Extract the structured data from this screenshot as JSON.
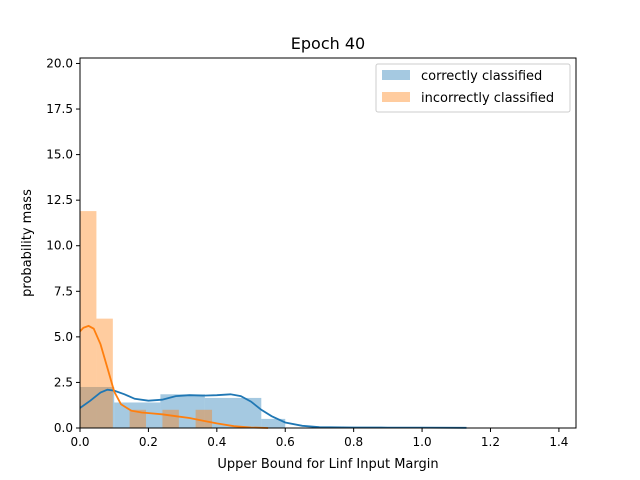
{
  "chart_data": {
    "type": "histogram",
    "title": "Epoch  40",
    "xlabel": "Upper Bound for Linf Input Margin",
    "ylabel": "probability mass",
    "xlim": [
      0.0,
      1.45
    ],
    "ylim": [
      0.0,
      20.3
    ],
    "x_ticks": [
      "0.0",
      "0.2",
      "0.4",
      "0.6",
      "0.8",
      "1.0",
      "1.2",
      "1.4"
    ],
    "y_ticks": [
      "0.0",
      "2.5",
      "5.0",
      "7.5",
      "10.0",
      "12.5",
      "15.0",
      "17.5",
      "20.0"
    ],
    "grid": false,
    "legend_position": "top-right",
    "series": [
      {
        "name": "correctly classified",
        "bar_color": "#1f77b4",
        "line_color": "#1f77b4",
        "bins": [
          {
            "x0": 0.0,
            "x1": 0.1,
            "height": 2.25
          },
          {
            "x0": 0.1,
            "x1": 0.235,
            "height": 1.4
          },
          {
            "x0": 0.235,
            "x1": 0.365,
            "height": 1.85
          },
          {
            "x0": 0.365,
            "x1": 0.53,
            "height": 1.65
          },
          {
            "x0": 0.53,
            "x1": 0.6,
            "height": 0.5
          }
        ],
        "kde": [
          [
            0.0,
            1.1
          ],
          [
            0.03,
            1.5
          ],
          [
            0.06,
            1.95
          ],
          [
            0.08,
            2.1
          ],
          [
            0.1,
            2.05
          ],
          [
            0.13,
            1.85
          ],
          [
            0.16,
            1.6
          ],
          [
            0.2,
            1.5
          ],
          [
            0.24,
            1.55
          ],
          [
            0.28,
            1.75
          ],
          [
            0.32,
            1.8
          ],
          [
            0.36,
            1.78
          ],
          [
            0.4,
            1.8
          ],
          [
            0.44,
            1.85
          ],
          [
            0.47,
            1.75
          ],
          [
            0.5,
            1.45
          ],
          [
            0.53,
            1.0
          ],
          [
            0.56,
            0.65
          ],
          [
            0.6,
            0.3
          ],
          [
            0.65,
            0.12
          ],
          [
            0.7,
            0.05
          ],
          [
            0.8,
            0.03
          ],
          [
            0.9,
            0.02
          ],
          [
            1.0,
            0.02
          ],
          [
            1.13,
            0.01
          ]
        ]
      },
      {
        "name": "incorrectly classified",
        "bar_color": "#ff7f0e",
        "line_color": "#ff7f0e",
        "bins": [
          {
            "x0": 0.0,
            "x1": 0.048,
            "height": 11.9
          },
          {
            "x0": 0.048,
            "x1": 0.096,
            "height": 6.0
          },
          {
            "x0": 0.145,
            "x1": 0.193,
            "height": 1.0
          },
          {
            "x0": 0.241,
            "x1": 0.289,
            "height": 1.0
          },
          {
            "x0": 0.338,
            "x1": 0.386,
            "height": 1.0
          }
        ],
        "kde": [
          [
            0.0,
            5.3
          ],
          [
            0.01,
            5.5
          ],
          [
            0.025,
            5.6
          ],
          [
            0.04,
            5.45
          ],
          [
            0.06,
            4.6
          ],
          [
            0.08,
            3.3
          ],
          [
            0.1,
            2.0
          ],
          [
            0.12,
            1.3
          ],
          [
            0.15,
            0.95
          ],
          [
            0.18,
            0.85
          ],
          [
            0.21,
            0.8
          ],
          [
            0.24,
            0.75
          ],
          [
            0.28,
            0.65
          ],
          [
            0.32,
            0.55
          ],
          [
            0.36,
            0.4
          ],
          [
            0.4,
            0.25
          ],
          [
            0.45,
            0.1
          ],
          [
            0.5,
            0.03
          ],
          [
            0.55,
            0.0
          ]
        ]
      }
    ]
  }
}
